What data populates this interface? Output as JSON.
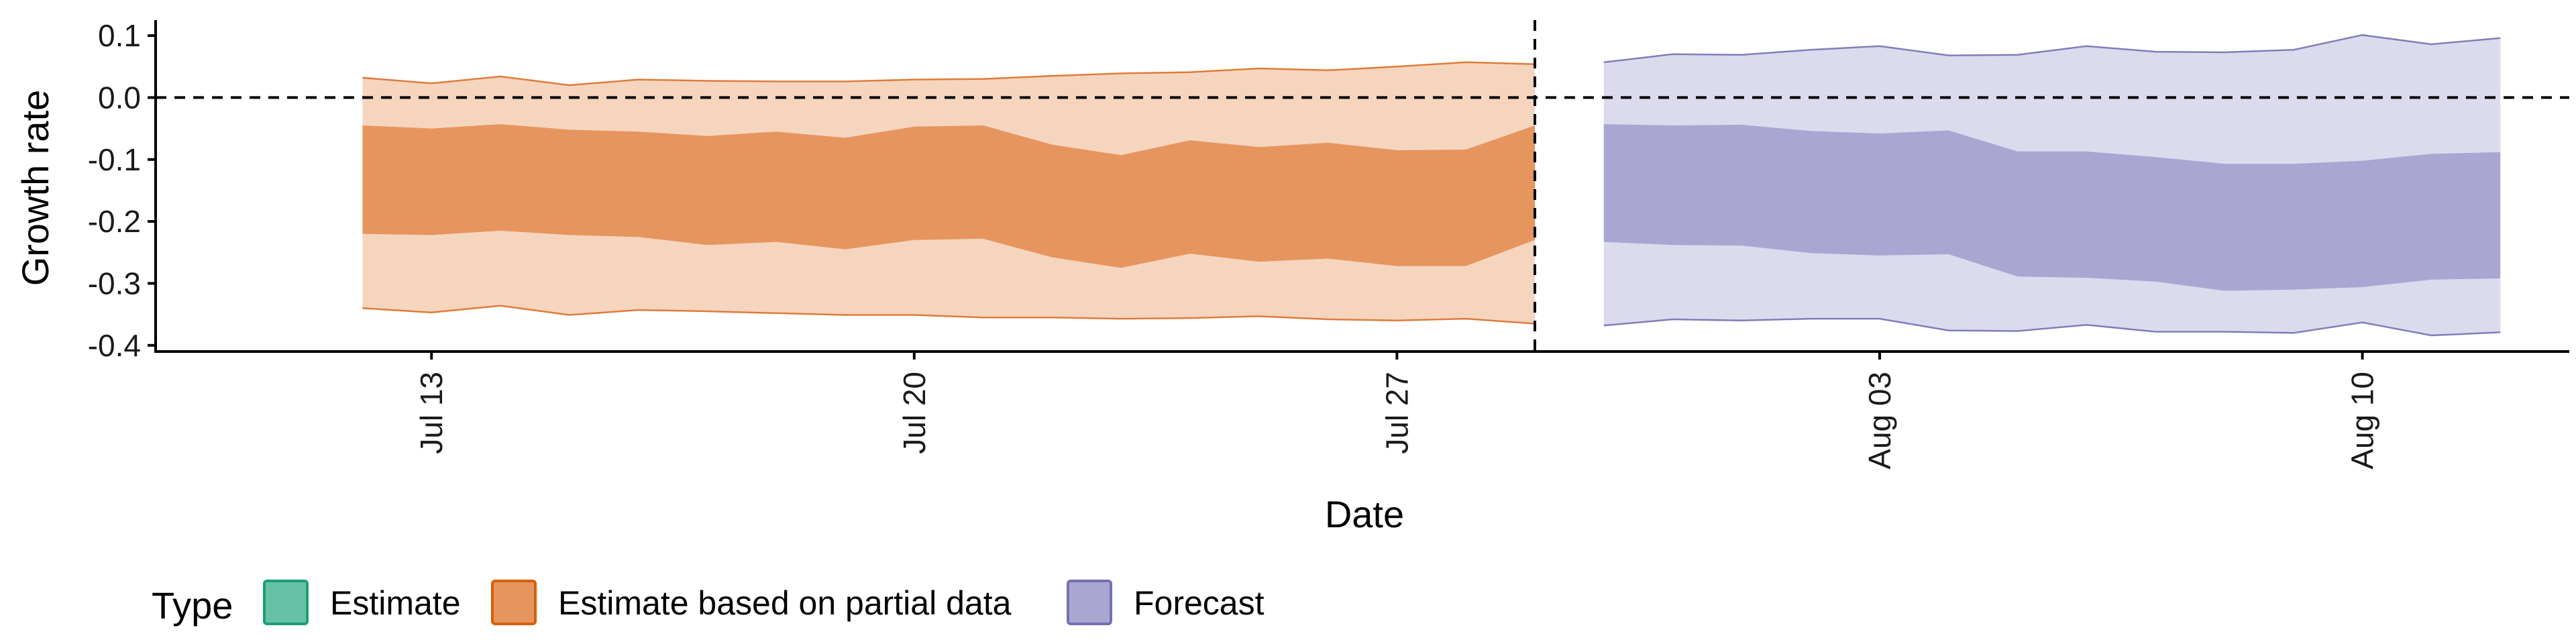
{
  "chart_data": {
    "type": "area",
    "xlabel": "Date",
    "ylabel": "Growth rate",
    "x_ticks": [
      "Jul 13",
      "Jul 20",
      "Jul 27",
      "Aug 03",
      "Aug 10"
    ],
    "y_ticks": [
      "0.1",
      "0.0",
      "-0.1",
      "-0.2",
      "-0.3",
      "-0.4"
    ],
    "ylim": [
      -0.41,
      0.125
    ],
    "xlim": [
      "2020-07-09",
      "2020-08-13"
    ],
    "reference_lines": {
      "horizontal_y": 0.0,
      "vertical_date": "2020-07-29"
    },
    "grid": false,
    "legend": {
      "position": "bottom-left",
      "title": "Type",
      "items": [
        {
          "label": "Estimate",
          "color": "#66c2a5"
        },
        {
          "label": "Estimate based on partial data",
          "color": "#e6955e"
        },
        {
          "label": "Forecast",
          "color": "#a9a6d2"
        }
      ]
    },
    "series": [
      {
        "name": "Estimate based on partial data",
        "color": "#e6955e",
        "outer_color": "#f6d5bf",
        "line_color": "#e07b39",
        "points": [
          {
            "date": "2020-07-12",
            "lower90": -0.34,
            "lower50": -0.22,
            "upper50": -0.045,
            "upper90": 0.032
          },
          {
            "date": "2020-07-13",
            "lower90": -0.347,
            "lower50": -0.222,
            "upper50": -0.05,
            "upper90": 0.023
          },
          {
            "date": "2020-07-14",
            "lower90": -0.336,
            "lower50": -0.215,
            "upper50": -0.043,
            "upper90": 0.034
          },
          {
            "date": "2020-07-15",
            "lower90": -0.351,
            "lower50": -0.222,
            "upper50": -0.052,
            "upper90": 0.02
          },
          {
            "date": "2020-07-16",
            "lower90": -0.343,
            "lower50": -0.225,
            "upper50": -0.055,
            "upper90": 0.029
          },
          {
            "date": "2020-07-17",
            "lower90": -0.345,
            "lower50": -0.238,
            "upper50": -0.062,
            "upper90": 0.027
          },
          {
            "date": "2020-07-18",
            "lower90": -0.348,
            "lower50": -0.233,
            "upper50": -0.055,
            "upper90": 0.026
          },
          {
            "date": "2020-07-19",
            "lower90": -0.351,
            "lower50": -0.245,
            "upper50": -0.065,
            "upper90": 0.026
          },
          {
            "date": "2020-07-20",
            "lower90": -0.351,
            "lower50": -0.23,
            "upper50": -0.047,
            "upper90": 0.029
          },
          {
            "date": "2020-07-21",
            "lower90": -0.355,
            "lower50": -0.228,
            "upper50": -0.045,
            "upper90": 0.03
          },
          {
            "date": "2020-07-22",
            "lower90": -0.355,
            "lower50": -0.258,
            "upper50": -0.076,
            "upper90": 0.035
          },
          {
            "date": "2020-07-23",
            "lower90": -0.357,
            "lower50": -0.275,
            "upper50": -0.093,
            "upper90": 0.039
          },
          {
            "date": "2020-07-24",
            "lower90": -0.356,
            "lower50": -0.252,
            "upper50": -0.069,
            "upper90": 0.041
          },
          {
            "date": "2020-07-25",
            "lower90": -0.353,
            "lower50": -0.265,
            "upper50": -0.08,
            "upper90": 0.047
          },
          {
            "date": "2020-07-26",
            "lower90": -0.358,
            "lower50": -0.26,
            "upper50": -0.073,
            "upper90": 0.044
          },
          {
            "date": "2020-07-27",
            "lower90": -0.36,
            "lower50": -0.272,
            "upper50": -0.085,
            "upper90": 0.05
          },
          {
            "date": "2020-07-28",
            "lower90": -0.357,
            "lower50": -0.272,
            "upper50": -0.084,
            "upper90": 0.057
          },
          {
            "date": "2020-07-29",
            "lower90": -0.365,
            "lower50": -0.23,
            "upper50": -0.045,
            "upper90": 0.054
          }
        ]
      },
      {
        "name": "Forecast",
        "color": "#a9a6d2",
        "outer_color": "#dcdbee",
        "line_color": "#807dba",
        "points": [
          {
            "date": "2020-07-30",
            "lower90": -0.368,
            "lower50": -0.233,
            "upper50": -0.043,
            "upper90": 0.057
          },
          {
            "date": "2020-07-31",
            "lower90": -0.358,
            "lower50": -0.238,
            "upper50": -0.045,
            "upper90": 0.07
          },
          {
            "date": "2020-08-01",
            "lower90": -0.36,
            "lower50": -0.239,
            "upper50": -0.044,
            "upper90": 0.069
          },
          {
            "date": "2020-08-02",
            "lower90": -0.357,
            "lower50": -0.251,
            "upper50": -0.054,
            "upper90": 0.077
          },
          {
            "date": "2020-08-03",
            "lower90": -0.357,
            "lower50": -0.255,
            "upper50": -0.058,
            "upper90": 0.083
          },
          {
            "date": "2020-08-04",
            "lower90": -0.376,
            "lower50": -0.253,
            "upper50": -0.053,
            "upper90": 0.068
          },
          {
            "date": "2020-08-05",
            "lower90": -0.377,
            "lower50": -0.289,
            "upper50": -0.087,
            "upper90": 0.069
          },
          {
            "date": "2020-08-06",
            "lower90": -0.367,
            "lower50": -0.291,
            "upper50": -0.087,
            "upper90": 0.083
          },
          {
            "date": "2020-08-07",
            "lower90": -0.378,
            "lower50": -0.297,
            "upper50": -0.096,
            "upper90": 0.074
          },
          {
            "date": "2020-08-08",
            "lower90": -0.378,
            "lower50": -0.312,
            "upper50": -0.107,
            "upper90": 0.073
          },
          {
            "date": "2020-08-09",
            "lower90": -0.38,
            "lower50": -0.31,
            "upper50": -0.107,
            "upper90": 0.077
          },
          {
            "date": "2020-08-10",
            "lower90": -0.363,
            "lower50": -0.306,
            "upper50": -0.102,
            "upper90": 0.101
          },
          {
            "date": "2020-08-11",
            "lower90": -0.384,
            "lower50": -0.294,
            "upper50": -0.091,
            "upper90": 0.086
          },
          {
            "date": "2020-08-12",
            "lower90": -0.379,
            "lower50": -0.292,
            "upper50": -0.088,
            "upper90": 0.096
          }
        ]
      }
    ]
  }
}
